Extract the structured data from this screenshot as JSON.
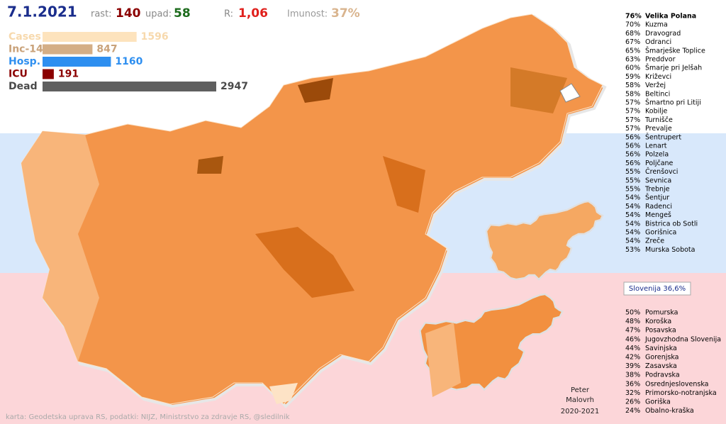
{
  "header": {
    "date": "7.1.2021",
    "rast_label": "rast:",
    "rast": "140",
    "upad_label": "upad:",
    "upad": "58",
    "r_label": "R:",
    "r": "1,06",
    "imunost_label": "Imunost:",
    "imunost": "37%"
  },
  "bars": [
    {
      "label": "Cases",
      "value": 1596,
      "color": "#fde3bd",
      "text_color": "#f7d9ad"
    },
    {
      "label": "Inc-14",
      "value": 847,
      "color": "#d4ae86",
      "text_color": "#c9a27a"
    },
    {
      "label": "Hosp.",
      "value": 1160,
      "color": "#2e8ff0",
      "text_color": "#2e8ff0"
    },
    {
      "label": "ICU",
      "value": 191,
      "color": "#8b0000",
      "text_color": "#8b0000"
    },
    {
      "label": "Dead",
      "value": 2947,
      "color": "#5f5f5f",
      "text_color": "#4a4a4a"
    }
  ],
  "municipalities": [
    {
      "pct": "76%",
      "name": "Velika Polana"
    },
    {
      "pct": "70%",
      "name": "Kuzma"
    },
    {
      "pct": "68%",
      "name": "Dravograd"
    },
    {
      "pct": "67%",
      "name": "Odranci"
    },
    {
      "pct": "65%",
      "name": "Šmarješke Toplice"
    },
    {
      "pct": "63%",
      "name": "Preddvor"
    },
    {
      "pct": "60%",
      "name": "Šmarje pri Jelšah"
    },
    {
      "pct": "59%",
      "name": "Križevci"
    },
    {
      "pct": "58%",
      "name": "Veržej"
    },
    {
      "pct": "58%",
      "name": "Beltinci"
    },
    {
      "pct": "57%",
      "name": "Šmartno pri Litiji"
    },
    {
      "pct": "57%",
      "name": "Kobilje"
    },
    {
      "pct": "57%",
      "name": "Turnišče"
    },
    {
      "pct": "57%",
      "name": "Prevalje"
    },
    {
      "pct": "56%",
      "name": "Šentrupert"
    },
    {
      "pct": "56%",
      "name": "Lenart"
    },
    {
      "pct": "56%",
      "name": "Polzela"
    },
    {
      "pct": "56%",
      "name": "Poljčane"
    },
    {
      "pct": "55%",
      "name": "Črenšovci"
    },
    {
      "pct": "55%",
      "name": "Sevnica"
    },
    {
      "pct": "55%",
      "name": "Trebnje"
    },
    {
      "pct": "54%",
      "name": "Šentjur"
    },
    {
      "pct": "54%",
      "name": "Radenci"
    },
    {
      "pct": "54%",
      "name": "Mengeš"
    },
    {
      "pct": "54%",
      "name": "Bistrica ob Sotli"
    },
    {
      "pct": "54%",
      "name": "Gorišnica"
    },
    {
      "pct": "54%",
      "name": "Zreče"
    },
    {
      "pct": "53%",
      "name": "Murska Sobota"
    }
  ],
  "national": "Slovenija 36,6%",
  "regions": [
    {
      "pct": "50%",
      "name": "Pomurska"
    },
    {
      "pct": "48%",
      "name": "Koroška"
    },
    {
      "pct": "47%",
      "name": "Posavska"
    },
    {
      "pct": "46%",
      "name": "Jugovzhodna Slovenija"
    },
    {
      "pct": "44%",
      "name": "Savinjska"
    },
    {
      "pct": "42%",
      "name": "Gorenjska"
    },
    {
      "pct": "39%",
      "name": "Zasavska"
    },
    {
      "pct": "38%",
      "name": "Podravska"
    },
    {
      "pct": "36%",
      "name": "Osrednjeslovenska"
    },
    {
      "pct": "32%",
      "name": "Primorsko-notranjska"
    },
    {
      "pct": "26%",
      "name": "Goriška"
    },
    {
      "pct": "24%",
      "name": "Obalno-kraška"
    }
  ],
  "author": [
    "Peter",
    "Malovrh",
    "2020-2021"
  ],
  "credits": "karta: Geodetska uprava RS,  podatki: NIJZ, Ministrstvo za zdravje RS, @sledilnik"
}
